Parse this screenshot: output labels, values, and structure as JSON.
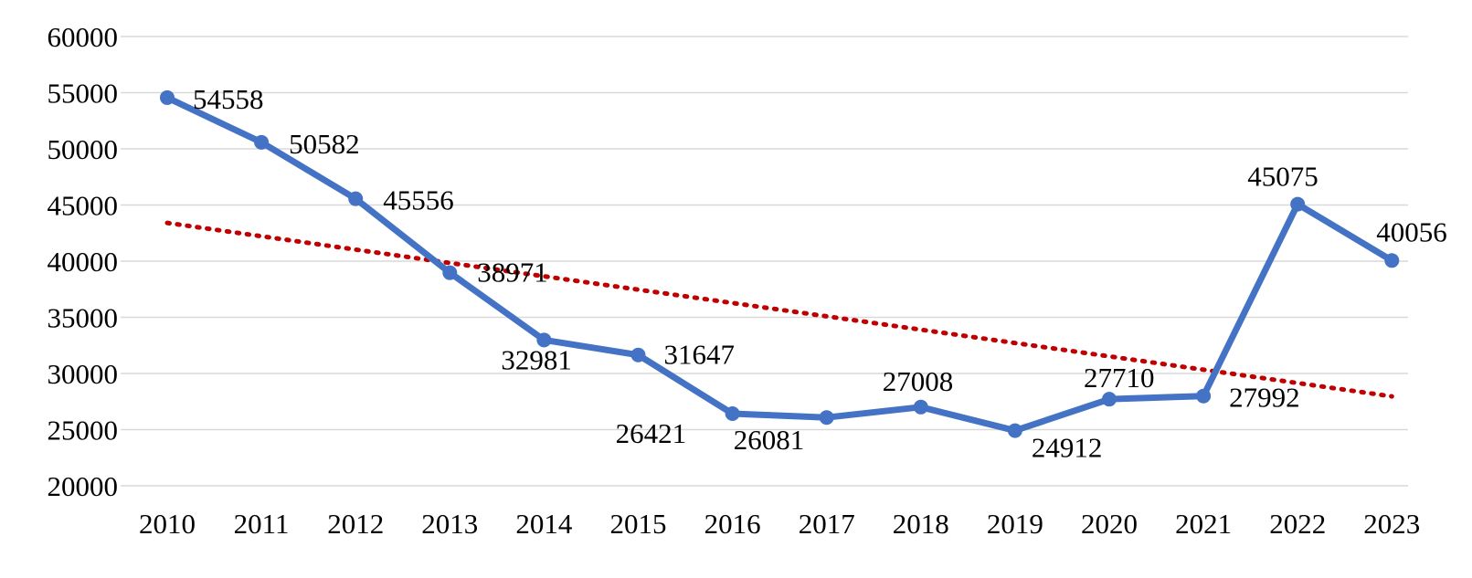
{
  "chart_data": {
    "type": "line",
    "title": "",
    "xlabel": "",
    "ylabel": "",
    "categories": [
      "2010",
      "2011",
      "2012",
      "2013",
      "2014",
      "2015",
      "2016",
      "2017",
      "2018",
      "2019",
      "2020",
      "2021",
      "2022",
      "2023"
    ],
    "series": [
      {
        "values": [
          54558,
          50582,
          45556,
          38971,
          32981,
          31647,
          26421,
          26081,
          27008,
          24912,
          27710,
          27992,
          45075,
          40056
        ],
        "color": "#4472c4",
        "markers": "circle",
        "data_labels": [
          "54558",
          "50582",
          "45556",
          "38971",
          "32981",
          "31647",
          "26421",
          "26081",
          "27008",
          "24912",
          "27710",
          "27992",
          "45075",
          "40056"
        ]
      }
    ],
    "trendline": {
      "type": "linear",
      "color": "#c00000",
      "style": "dotted"
    },
    "ylim": [
      20000,
      60000
    ],
    "yticks": [
      20000,
      25000,
      30000,
      35000,
      40000,
      45000,
      50000,
      55000,
      60000
    ],
    "ytick_labels": [
      "20000",
      "25000",
      "30000",
      "35000",
      "40000",
      "45000",
      "50000",
      "55000",
      "60000"
    ],
    "grid": "horizontal",
    "legend": "none"
  }
}
